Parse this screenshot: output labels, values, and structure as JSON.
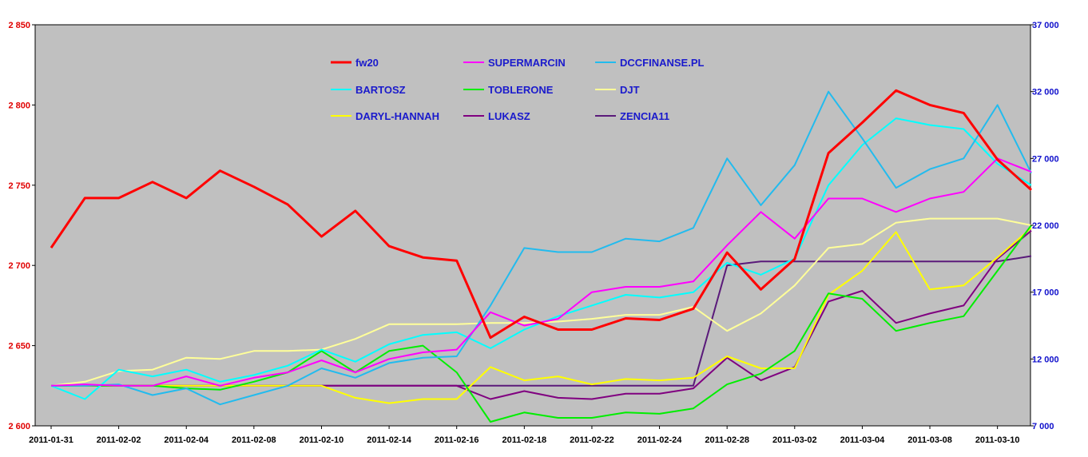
{
  "chart_data": {
    "type": "line",
    "title": "",
    "xlabel": "",
    "ylabel": "",
    "grid": false,
    "legend_position": "top-center",
    "plot_background": "#c0c0c0",
    "categories": [
      "2011-01-31",
      "2011-02-01",
      "2011-02-02",
      "2011-02-03",
      "2011-02-04",
      "2011-02-07",
      "2011-02-08",
      "2011-02-09",
      "2011-02-10",
      "2011-02-11",
      "2011-02-14",
      "2011-02-15",
      "2011-02-16",
      "2011-02-17",
      "2011-02-18",
      "2011-02-21",
      "2011-02-22",
      "2011-02-23",
      "2011-02-24",
      "2011-02-25",
      "2011-02-28",
      "2011-03-01",
      "2011-03-02",
      "2011-03-03",
      "2011-03-04",
      "2011-03-07",
      "2011-03-08",
      "2011-03-09",
      "2011-03-10",
      "2011-03-11"
    ],
    "x_tick_labels": [
      "2011-01-31",
      "2011-02-02",
      "2011-02-04",
      "2011-02-08",
      "2011-02-10",
      "2011-02-14",
      "2011-02-16",
      "2011-02-18",
      "2011-02-22",
      "2011-02-24",
      "2011-02-28",
      "2011-03-02",
      "2011-03-04",
      "2011-03-08",
      "2011-03-10"
    ],
    "y_left": {
      "min": 2600,
      "max": 2850,
      "ticks": [
        "2 600",
        "2 650",
        "2 700",
        "2 750",
        "2 800",
        "2 850"
      ],
      "color": "#e00000"
    },
    "y_right": {
      "min": 7000,
      "max": 37000,
      "ticks": [
        "7 000",
        "12 000",
        "17 000",
        "22 000",
        "27 000",
        "32 000",
        "37 000"
      ],
      "color": "#1010cc"
    },
    "series": [
      {
        "name": "fw20",
        "axis": "left",
        "color": "#ff0000",
        "width": 3,
        "values": [
          2711,
          2742,
          2742,
          2752,
          2742,
          2759,
          2749,
          2738,
          2718,
          2734,
          2712,
          2705,
          2703,
          2655,
          2668,
          2660,
          2660,
          2667,
          2666,
          2673,
          2708,
          2685,
          2704,
          2770,
          2789,
          2809,
          2800,
          2795,
          2766,
          2747
        ]
      },
      {
        "name": "SUPERMARCIN",
        "axis": "right",
        "color": "#ff00ff",
        "width": 2,
        "values": [
          10000,
          10100,
          10000,
          10000,
          10700,
          10000,
          10600,
          11000,
          11900,
          11000,
          12000,
          12500,
          12700,
          15500,
          14500,
          15000,
          17000,
          17400,
          17400,
          17800,
          20500,
          23000,
          21000,
          24000,
          24000,
          23000,
          24000,
          24500,
          27000,
          26000
        ]
      },
      {
        "name": "DCCFINANSE.PL",
        "axis": "right",
        "color": "#22bbee",
        "width": 2,
        "values": [
          10000,
          10000,
          10100,
          9300,
          9800,
          8600,
          9300,
          10000,
          11300,
          10600,
          11700,
          12100,
          12200,
          16000,
          20300,
          20000,
          20000,
          21000,
          20800,
          21800,
          27000,
          23500,
          26500,
          32000,
          28500,
          24800,
          26200,
          27000,
          31000,
          25900
        ]
      },
      {
        "name": "BARTOSZ",
        "axis": "right",
        "color": "#00ffff",
        "width": 2,
        "values": [
          10000,
          9000,
          11200,
          10700,
          11200,
          10300,
          10800,
          11500,
          12700,
          11800,
          13100,
          13800,
          14000,
          12800,
          14200,
          15200,
          16000,
          16800,
          16600,
          17000,
          19200,
          18300,
          19500,
          25000,
          28000,
          30000,
          29500,
          29200,
          26600,
          25000
        ]
      },
      {
        "name": "TOBLERONE",
        "axis": "right",
        "color": "#00ee00",
        "width": 2,
        "values": [
          10000,
          10000,
          10000,
          10000,
          9800,
          9700,
          10300,
          11000,
          12600,
          11000,
          12600,
          13000,
          11000,
          7300,
          8000,
          7600,
          7600,
          8000,
          7900,
          8300,
          10100,
          10900,
          12600,
          16900,
          16500,
          14100,
          14700,
          15200,
          18600,
          22000
        ]
      },
      {
        "name": "DJT",
        "axis": "right",
        "color": "#ffff99",
        "width": 2,
        "values": [
          10000,
          10300,
          11100,
          11200,
          12100,
          12000,
          12600,
          12600,
          12700,
          13500,
          14600,
          14600,
          14600,
          14700,
          14700,
          14800,
          15000,
          15300,
          15300,
          15900,
          14100,
          15400,
          17500,
          20300,
          20600,
          22200,
          22500,
          22500,
          22500,
          22000
        ]
      },
      {
        "name": "DARYL-HANNAH",
        "axis": "right",
        "color": "#ffff00",
        "width": 2,
        "values": [
          10000,
          10000,
          10000,
          10000,
          10000,
          10000,
          10000,
          10000,
          10000,
          9100,
          8700,
          9000,
          9000,
          11400,
          10400,
          10700,
          10100,
          10500,
          10400,
          10600,
          12200,
          11300,
          11300,
          16800,
          18600,
          21500,
          17200,
          17500,
          19600,
          21800
        ]
      },
      {
        "name": "LUKASZ",
        "axis": "right",
        "color": "#800080",
        "width": 2,
        "values": [
          10000,
          10000,
          10000,
          10000,
          10000,
          10000,
          10000,
          10000,
          10000,
          10000,
          10000,
          10000,
          10000,
          9000,
          9600,
          9100,
          9000,
          9400,
          9400,
          9800,
          12100,
          10400,
          11400,
          16300,
          17100,
          14700,
          15400,
          16000,
          19500,
          21600
        ]
      },
      {
        "name": "ZENCIA11",
        "axis": "right",
        "color": "#5a1a7a",
        "width": 2,
        "values": [
          10000,
          10000,
          10000,
          10000,
          10000,
          10000,
          10000,
          10000,
          10000,
          10000,
          10000,
          10000,
          10000,
          10000,
          10000,
          10000,
          10000,
          10000,
          10000,
          10000,
          19000,
          19300,
          19300,
          19300,
          19300,
          19300,
          19300,
          19300,
          19300,
          19700
        ]
      }
    ]
  }
}
